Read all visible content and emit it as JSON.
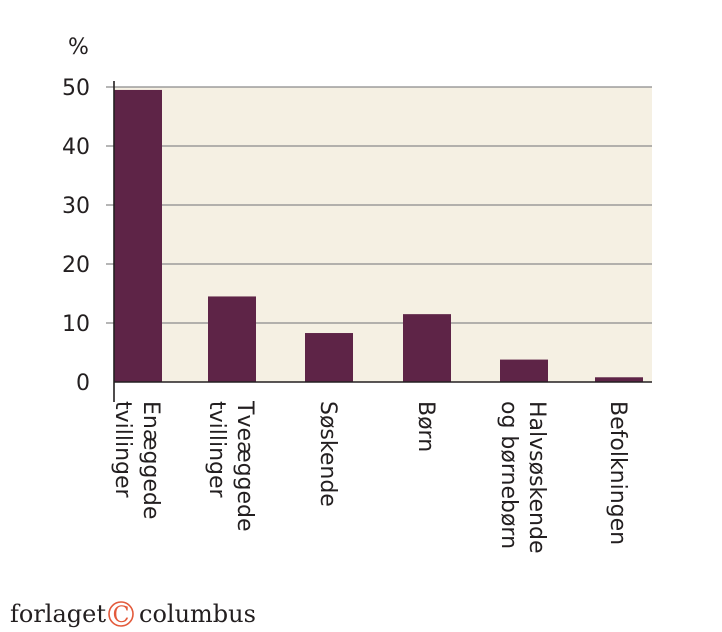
{
  "chart_data": {
    "type": "bar",
    "ylabel": "%",
    "ylim": [
      0,
      50
    ],
    "yticks": [
      0,
      10,
      20,
      30,
      40,
      50
    ],
    "grid": true,
    "categories": [
      [
        "Enæggede",
        "tvillinger"
      ],
      [
        "Tveæggede",
        "tvillinger"
      ],
      [
        "Søskende"
      ],
      [
        "Børn"
      ],
      [
        "Halvsøskende",
        "og børnebørn"
      ],
      [
        "Befolkningen"
      ]
    ],
    "values": [
      49.5,
      14.5,
      8.3,
      11.5,
      3.8,
      0.8
    ],
    "colors": {
      "bar": "#5e2447",
      "plot_background": "#f5f0e3",
      "grid": "#8a8a8a",
      "axis": "#231f20",
      "text": "#231f20"
    }
  },
  "footer": {
    "brand_left": "forlaget",
    "brand_mark": "C",
    "brand_right": "columbus",
    "brand_mark_color": "#e35a3b"
  }
}
